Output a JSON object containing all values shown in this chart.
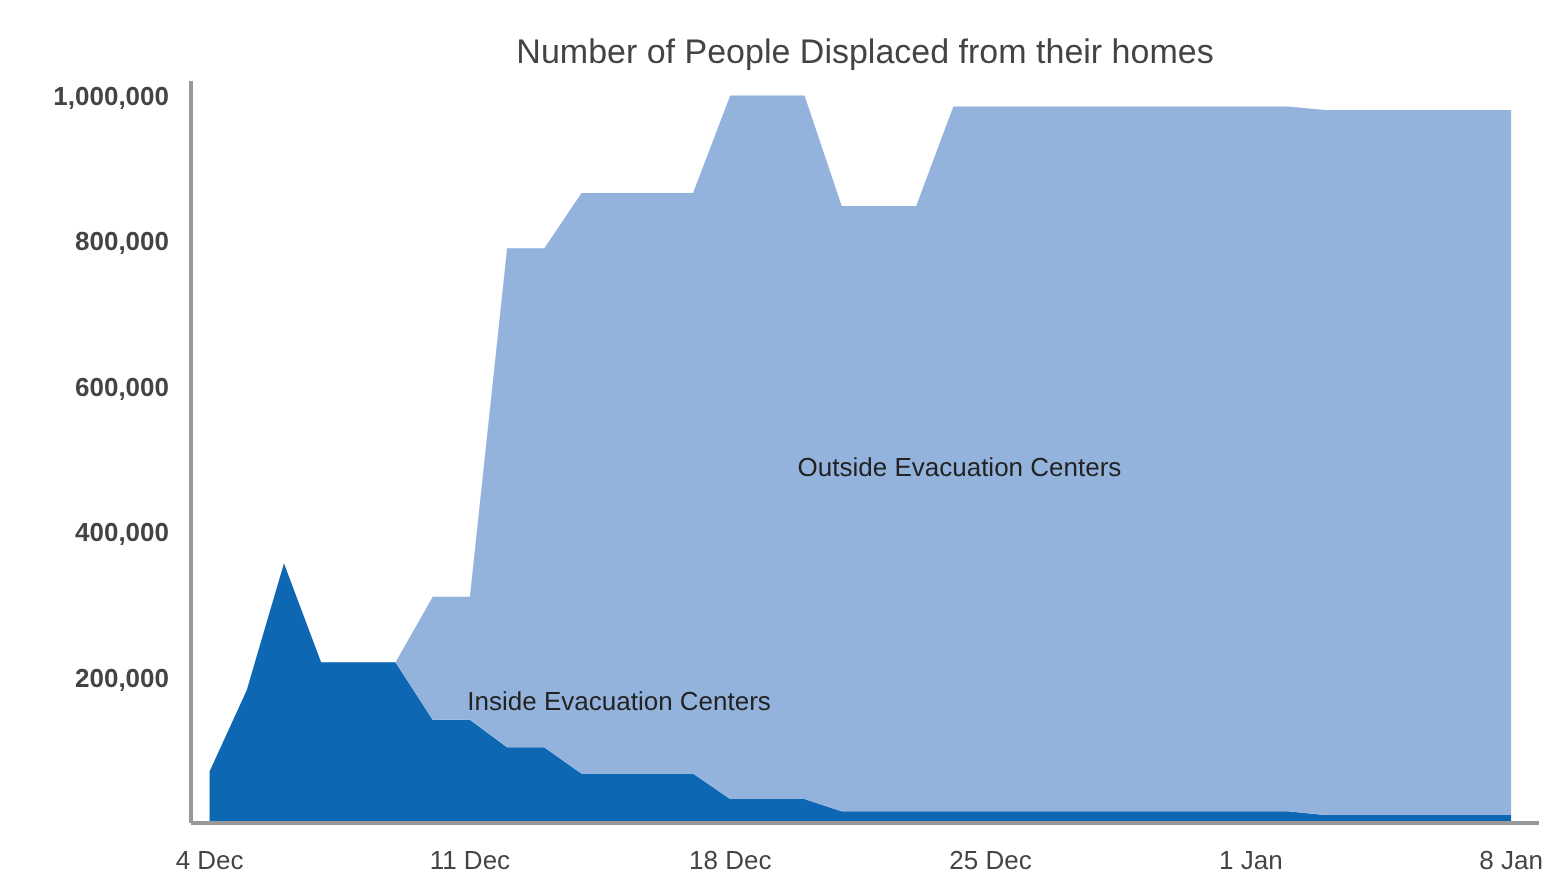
{
  "chart_data": {
    "type": "area",
    "stacked": true,
    "title": "Number of People Displaced from their homes",
    "categories": [
      "4 Dec",
      null,
      null,
      null,
      null,
      null,
      null,
      "11 Dec",
      null,
      null,
      null,
      null,
      null,
      null,
      "18 Dec",
      null,
      null,
      null,
      null,
      null,
      null,
      "25 Dec",
      null,
      null,
      null,
      null,
      null,
      null,
      "1 Jan",
      null,
      null,
      null,
      null,
      null,
      null,
      "8 Jan"
    ],
    "series": [
      {
        "name": "Inside Evacuation Centers",
        "color": "#0e67b3",
        "values": [
          71000,
          183000,
          357000,
          221000,
          221000,
          221000,
          142000,
          142000,
          104000,
          104000,
          68000,
          68000,
          68000,
          68000,
          33000,
          33000,
          33000,
          16000,
          16000,
          16000,
          16000,
          16000,
          16000,
          16000,
          16000,
          16000,
          16000,
          16000,
          16000,
          16000,
          11000,
          11000,
          11000,
          11000,
          11000,
          11000
        ]
      },
      {
        "name": "Outside Evacuation Centers",
        "color": "#93b3dd",
        "values": [
          0,
          0,
          0,
          0,
          0,
          0,
          169000,
          169000,
          686000,
          686000,
          798000,
          798000,
          798000,
          798000,
          967000,
          967000,
          967000,
          832000,
          832000,
          832000,
          969000,
          969000,
          969000,
          969000,
          969000,
          969000,
          969000,
          969000,
          969000,
          969000,
          969000,
          969000,
          969000,
          969000,
          969000,
          969000
        ]
      }
    ],
    "ylim": [
      0,
      1020000
    ],
    "yticks": [
      {
        "value": 200000,
        "label": "200,000"
      },
      {
        "value": 400000,
        "label": "400,000"
      },
      {
        "value": 600000,
        "label": "600,000"
      },
      {
        "value": 800000,
        "label": "800,000"
      },
      {
        "value": 1000000,
        "label": "1,000,000"
      }
    ],
    "grid": false,
    "legend": false
  }
}
